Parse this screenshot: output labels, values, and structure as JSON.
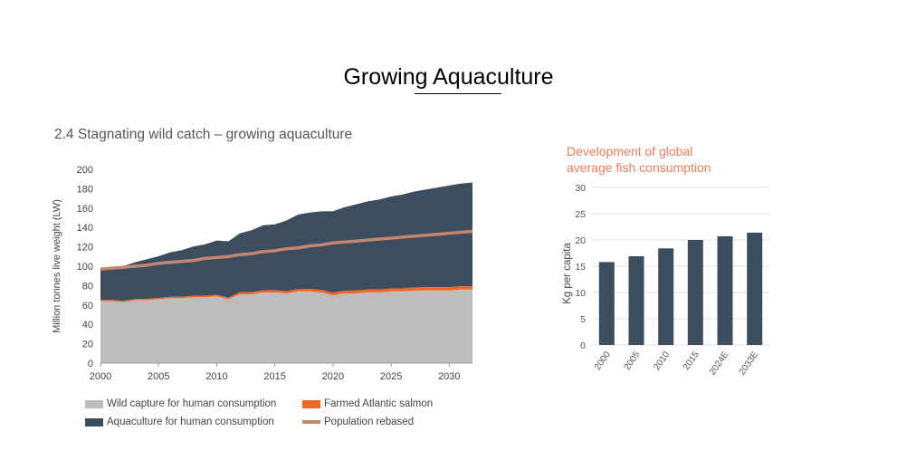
{
  "page": {
    "title": "Growing Aquaculture"
  },
  "left_chart_heading": "2.4  Stagnating wild catch – growing aquaculture",
  "right_chart_heading": {
    "line1": "Development of global",
    "line2": "average fish consumption"
  },
  "colors": {
    "wild": "#bdbdbd",
    "aquaculture": "#3b4d5f",
    "salmon": "#f26522",
    "population": "#c4866e",
    "bar": "#3b4d5f",
    "heading_accent": "#f07c5a",
    "grid": "#e0e0e0"
  },
  "legend": {
    "wild": "Wild capture for human consumption",
    "salmon": "Farmed Atlantic salmon",
    "aquaculture": "Aquaculture for human consumption",
    "population": "Population rebased"
  },
  "chart_data": [
    {
      "type": "area",
      "title": "Stagnating wild catch – growing aquaculture",
      "xlabel": "",
      "ylabel": "Million tonnes live weight (LW)",
      "xlim": [
        2000,
        2032
      ],
      "ylim": [
        0,
        200
      ],
      "x_ticks": [
        2000,
        2005,
        2010,
        2015,
        2020,
        2025,
        2030
      ],
      "y_ticks": [
        0,
        20,
        40,
        60,
        80,
        100,
        120,
        140,
        160,
        180,
        200
      ],
      "x": [
        2000,
        2001,
        2002,
        2003,
        2004,
        2005,
        2006,
        2007,
        2008,
        2009,
        2010,
        2011,
        2012,
        2013,
        2014,
        2015,
        2016,
        2017,
        2018,
        2019,
        2020,
        2021,
        2022,
        2023,
        2024,
        2025,
        2026,
        2027,
        2028,
        2029,
        2030,
        2031,
        2032
      ],
      "series": [
        {
          "name": "Wild capture for human consumption",
          "values": [
            64,
            64,
            63,
            65,
            65,
            66,
            67,
            67,
            68,
            68,
            69,
            66,
            71,
            71,
            73,
            73,
            72,
            74,
            74,
            73,
            70,
            72,
            72,
            73,
            73,
            74,
            74,
            75,
            75,
            75,
            75,
            76,
            76
          ]
        },
        {
          "name": "Farmed Atlantic salmon",
          "values": [
            1.0,
            1.1,
            1.2,
            1.2,
            1.3,
            1.3,
            1.4,
            1.5,
            1.5,
            1.5,
            1.5,
            1.7,
            2.0,
            2.1,
            2.2,
            2.3,
            2.2,
            2.3,
            2.4,
            2.6,
            2.7,
            2.8,
            2.9,
            2.9,
            3.0,
            3.0,
            3.1,
            3.1,
            3.2,
            3.2,
            3.3,
            3.3,
            3.4
          ]
        },
        {
          "name": "Aquaculture for human consumption",
          "values": [
            33,
            34,
            36,
            38,
            41,
            43,
            46,
            48,
            51,
            53,
            56,
            58,
            61,
            64,
            67,
            68,
            73,
            77,
            79,
            81,
            84,
            86,
            89,
            91,
            93,
            95,
            97,
            99,
            101,
            103,
            105,
            106,
            107
          ]
        },
        {
          "name": "Population rebased",
          "values": [
            97,
            98,
            99,
            100,
            101,
            103,
            104,
            105,
            106,
            108,
            109,
            110,
            112,
            113,
            115,
            116,
            118,
            119,
            121,
            122,
            124,
            125,
            126,
            127,
            128,
            129,
            130,
            131,
            132,
            133,
            134,
            135,
            136
          ]
        }
      ]
    },
    {
      "type": "bar",
      "title": "Development of global average fish consumption",
      "xlabel": "",
      "ylabel": "Kg per capita",
      "ylim": [
        0,
        30
      ],
      "y_ticks": [
        0,
        5,
        10,
        15,
        20,
        25,
        30
      ],
      "categories": [
        "2000",
        "2005",
        "2010",
        "2015",
        "2024E",
        "2033E"
      ],
      "values": [
        15.8,
        16.9,
        18.4,
        20.0,
        20.7,
        21.4
      ]
    }
  ]
}
